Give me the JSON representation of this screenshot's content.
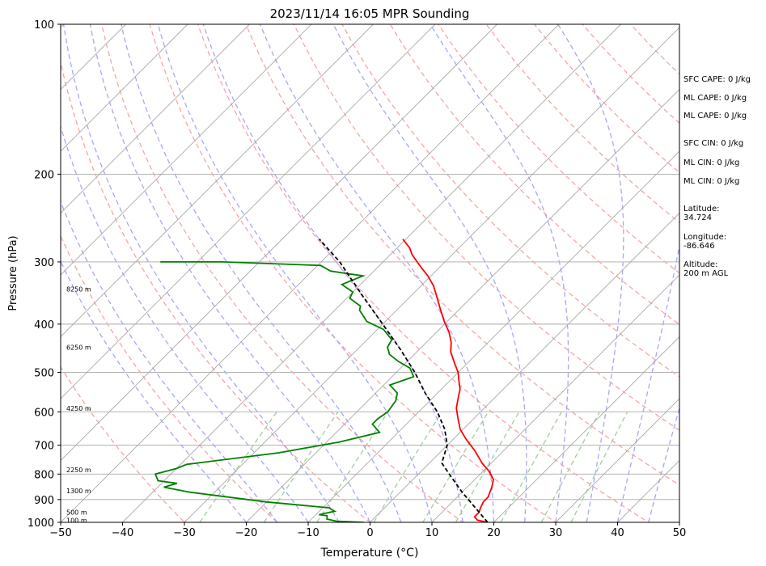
{
  "chart_data": {
    "type": "line",
    "title": "2023/11/14 16:05 MPR Sounding",
    "xlabel": "Temperature (°C)",
    "ylabel": "Pressure (hPa)",
    "xlim": [
      -50,
      50
    ],
    "ylim": [
      1000,
      100
    ],
    "y_scale": "log",
    "skew": "45-degree skew-T",
    "grid": true,
    "x_ticks": [
      "−50",
      "−40",
      "−30",
      "−20",
      "−10",
      "0",
      "10",
      "20",
      "30",
      "40",
      "50"
    ],
    "y_ticks": [
      "100",
      "200",
      "300",
      "400",
      "500",
      "600",
      "700",
      "800",
      "900",
      "1000"
    ],
    "height_labels": [
      {
        "p": 990,
        "label": "100 m"
      },
      {
        "p": 955,
        "label": "500 m"
      },
      {
        "p": 865,
        "label": "1300 m"
      },
      {
        "p": 785,
        "label": "2250 m"
      },
      {
        "p": 590,
        "label": "4250 m"
      },
      {
        "p": 445,
        "label": "6250 m"
      },
      {
        "p": 340,
        "label": "8250 m"
      }
    ],
    "series": [
      {
        "role": "temperature",
        "color": "#ff0000",
        "points": [
          [
            19.0,
            1000
          ],
          [
            17.0,
            990
          ],
          [
            16.0,
            975
          ],
          [
            16.0,
            955
          ],
          [
            15.5,
            935
          ],
          [
            15.0,
            910
          ],
          [
            15.0,
            890
          ],
          [
            14.5,
            870
          ],
          [
            14.0,
            850
          ],
          [
            13.0,
            820
          ],
          [
            11.0,
            790
          ],
          [
            8.5,
            760
          ],
          [
            5.5,
            720
          ],
          [
            2.0,
            680
          ],
          [
            -0.5,
            650
          ],
          [
            -2.5,
            620
          ],
          [
            -4.5,
            590
          ],
          [
            -6.0,
            560
          ],
          [
            -7.0,
            540
          ],
          [
            -8.5,
            520
          ],
          [
            -10.0,
            500
          ],
          [
            -12.0,
            480
          ],
          [
            -14.5,
            455
          ],
          [
            -16.0,
            435
          ],
          [
            -18.0,
            415
          ],
          [
            -20.5,
            395
          ],
          [
            -23.5,
            370
          ],
          [
            -26.0,
            350
          ],
          [
            -28.0,
            335
          ],
          [
            -30.5,
            320
          ],
          [
            -32.5,
            310
          ],
          [
            -34.5,
            300
          ],
          [
            -36.5,
            290
          ],
          [
            -38.0,
            281
          ],
          [
            -40.5,
            270
          ]
        ]
      },
      {
        "role": "dewpoint",
        "color": "#008000",
        "points": [
          [
            -1.0,
            1000
          ],
          [
            -5.5,
            995
          ],
          [
            -7.5,
            985
          ],
          [
            -8.0,
            970
          ],
          [
            -9.5,
            965
          ],
          [
            -7.5,
            950
          ],
          [
            -9.0,
            935
          ],
          [
            -20.0,
            910
          ],
          [
            -34.0,
            870
          ],
          [
            -39.0,
            850
          ],
          [
            -37.5,
            835
          ],
          [
            -41.0,
            825
          ],
          [
            -42.5,
            800
          ],
          [
            -40.0,
            780
          ],
          [
            -39.0,
            765
          ],
          [
            -26.0,
            725
          ],
          [
            -18.0,
            690
          ],
          [
            -13.0,
            660
          ],
          [
            -15.5,
            635
          ],
          [
            -15.5,
            620
          ],
          [
            -15.0,
            600
          ],
          [
            -15.5,
            570
          ],
          [
            -16.5,
            550
          ],
          [
            -19.0,
            530
          ],
          [
            -16.5,
            510
          ],
          [
            -18.5,
            490
          ],
          [
            -21.5,
            475
          ],
          [
            -24.0,
            460
          ],
          [
            -25.5,
            445
          ],
          [
            -26.0,
            430
          ],
          [
            -29.0,
            410
          ],
          [
            -33.0,
            395
          ],
          [
            -36.0,
            375
          ],
          [
            -36.5,
            368
          ],
          [
            -39.5,
            355
          ],
          [
            -40.0,
            345
          ],
          [
            -43.0,
            333
          ],
          [
            -41.0,
            320
          ],
          [
            -47.0,
            313
          ],
          [
            -49.5,
            305
          ],
          [
            -66.0,
            300
          ],
          [
            -76.0,
            300
          ]
        ]
      },
      {
        "role": "parcel",
        "color": "#000000",
        "style": "dashed",
        "points": [
          [
            19.0,
            1000
          ],
          [
            10.0,
            870
          ],
          [
            5.0,
            800
          ],
          [
            2.0,
            760
          ],
          [
            0.0,
            700
          ],
          [
            -3.0,
            650
          ],
          [
            -7.0,
            600
          ],
          [
            -12.0,
            550
          ],
          [
            -17.0,
            500
          ],
          [
            -23.0,
            450
          ],
          [
            -30.0,
            400
          ],
          [
            -38.0,
            350
          ],
          [
            -47.0,
            300
          ],
          [
            -54.0,
            270
          ]
        ]
      }
    ]
  },
  "stats": {
    "sfc_cape": "SFC CAPE: 0 J/kg",
    "ml_cape": "ML CAPE: 0 J/kg",
    "ml_cape_2": "ML CAPE: 0 J/kg",
    "sfc_cin": "SFC CIN: 0 J/kg",
    "ml_cin": "ML CIN: 0 J/kg",
    "ml_cin_2": "ML CIN: 0 J/kg",
    "latitude": "Latitude:\n34.724",
    "longitude": "Longitude:\n-86.646",
    "altitude": "Altitude:\n200 m AGL"
  },
  "colors": {
    "temperature": "#ff0000",
    "dewpoint": "#008000",
    "parcel": "#000000",
    "dry_adiabat": "#f4a6a6",
    "moist_adiabat": "#aaa6f2",
    "mixing_ratio": "#9ecf9e",
    "isotherm": "#a8a8a8"
  }
}
